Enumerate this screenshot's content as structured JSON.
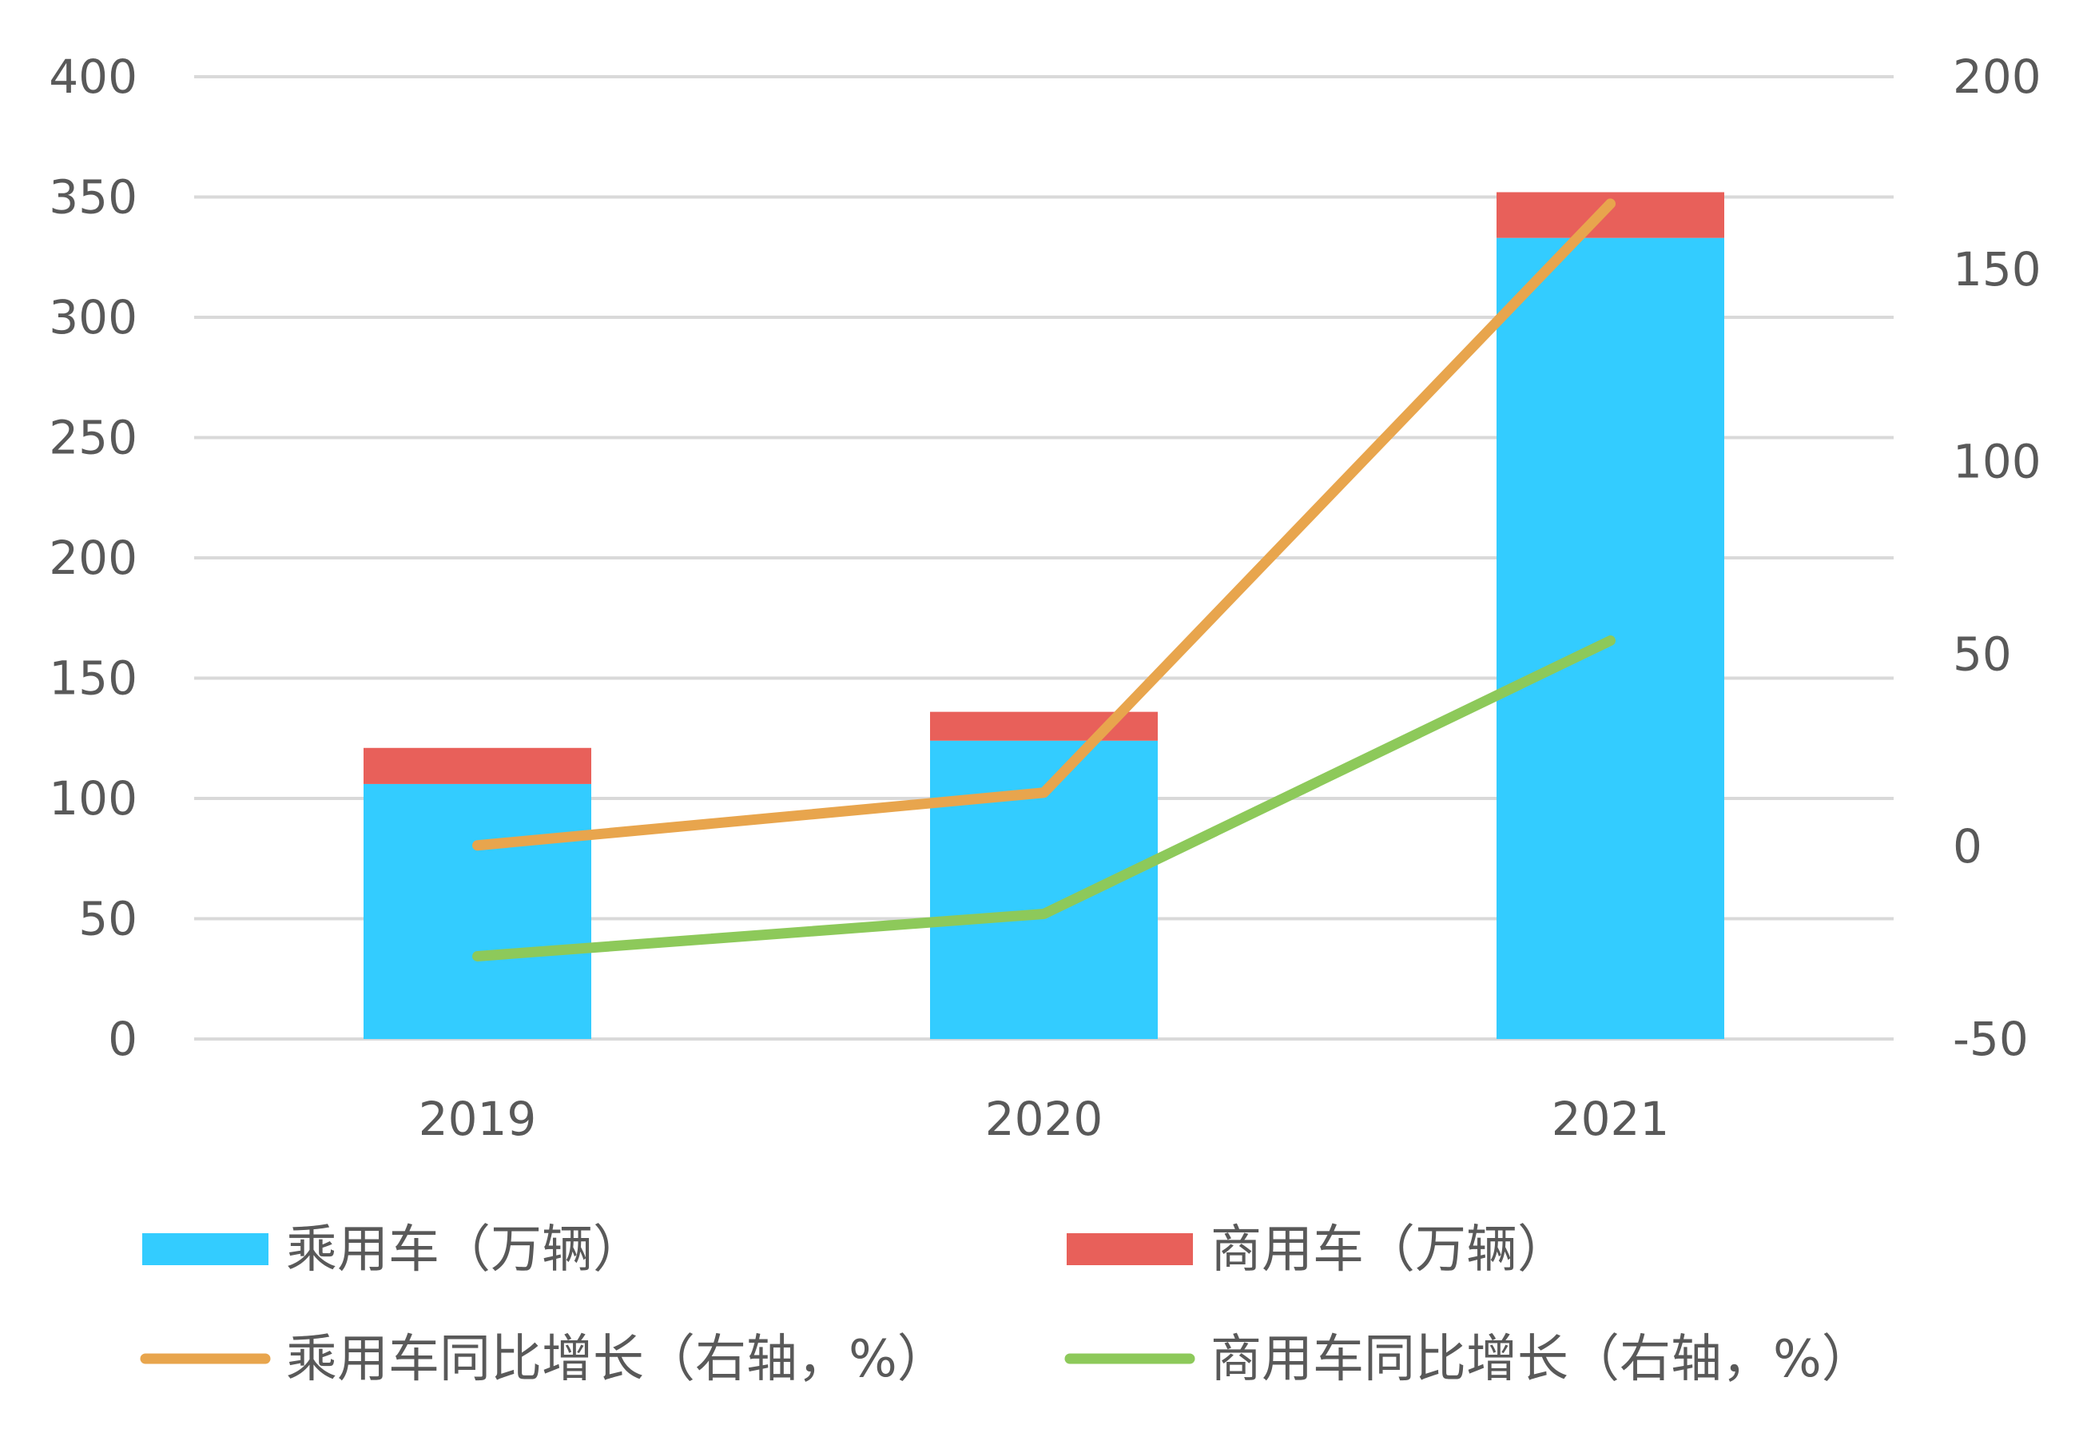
{
  "chart_data": {
    "type": "bar",
    "stacked": true,
    "categories": [
      "2019",
      "2020",
      "2021"
    ],
    "series": [
      {
        "name": "乘用车（万辆）",
        "kind": "bar",
        "axis": "left",
        "color": "#33CCFF",
        "values": [
          106,
          124,
          333
        ]
      },
      {
        "name": "商用车（万辆）",
        "kind": "bar",
        "axis": "left",
        "color": "#E8605A",
        "values": [
          15,
          12,
          19
        ]
      },
      {
        "name": "乘用车同比增长（右轴，%）",
        "kind": "line",
        "axis": "right",
        "color": "#E8A54D",
        "values": [
          0.3,
          14,
          167
        ]
      },
      {
        "name": "商用车同比增长（右轴，%）",
        "kind": "line",
        "axis": "right",
        "color": "#8DC95A",
        "values": [
          -28.5,
          -17.5,
          53.5
        ]
      }
    ],
    "left_axis": {
      "min": 0,
      "max": 400,
      "ticks": [
        "0",
        "50",
        "100",
        "150",
        "200",
        "250",
        "300",
        "350",
        "400"
      ]
    },
    "right_axis": {
      "min": -50,
      "max": 200,
      "ticks": [
        "-50",
        "0",
        "50",
        "100",
        "150",
        "200"
      ]
    },
    "grid": true,
    "gridline_color": "#D9D9D9",
    "legend_position": "bottom",
    "title": "",
    "xlabel": "",
    "ylabel": ""
  }
}
